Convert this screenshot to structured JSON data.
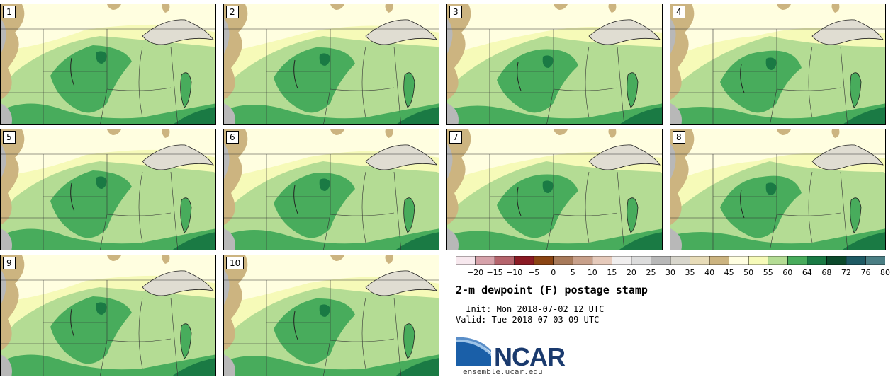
{
  "title": "2-m dewpoint (F) postage stamp",
  "init": " Init: Mon 2018-07-02 12 UTC",
  "valid": "Valid: Tue 2018-07-03 09 UTC",
  "logo_text": "NCAR",
  "logo_url": "ensemble.ucar.edu",
  "members": [
    "1",
    "2",
    "3",
    "4",
    "5",
    "6",
    "7",
    "8",
    "9",
    "10"
  ],
  "colorbar": {
    "ticks": [
      "-20",
      "-15",
      "-10",
      "-5",
      "0",
      "5",
      "10",
      "15",
      "20",
      "25",
      "30",
      "35",
      "40",
      "45",
      "50",
      "55",
      "60",
      "64",
      "68",
      "72",
      "76",
      "80"
    ],
    "colors": [
      "#f7e8ee",
      "#d6a2aa",
      "#b5646c",
      "#8b1a24",
      "#8b4513",
      "#a87a5a",
      "#c8a08a",
      "#e6cabb",
      "#f0eeee",
      "#dcdcdc",
      "#b8b8b8",
      "#d8d6cc",
      "#e8dcb8",
      "#ccb480",
      "#fffee0",
      "#f6fab8",
      "#b4dc94",
      "#48ac5c",
      "#1a7a44",
      "#0c4a2c",
      "#1e5a64",
      "#4a7e84"
    ]
  },
  "colors": {
    "dry": "#ccb480",
    "gray": "#b8b8b8",
    "c55": "#fffee0",
    "c60": "#f6fab8",
    "c64": "#b4dc94",
    "c68": "#48ac5c",
    "c72": "#1a7a44",
    "lake": "#e0ddd2"
  }
}
